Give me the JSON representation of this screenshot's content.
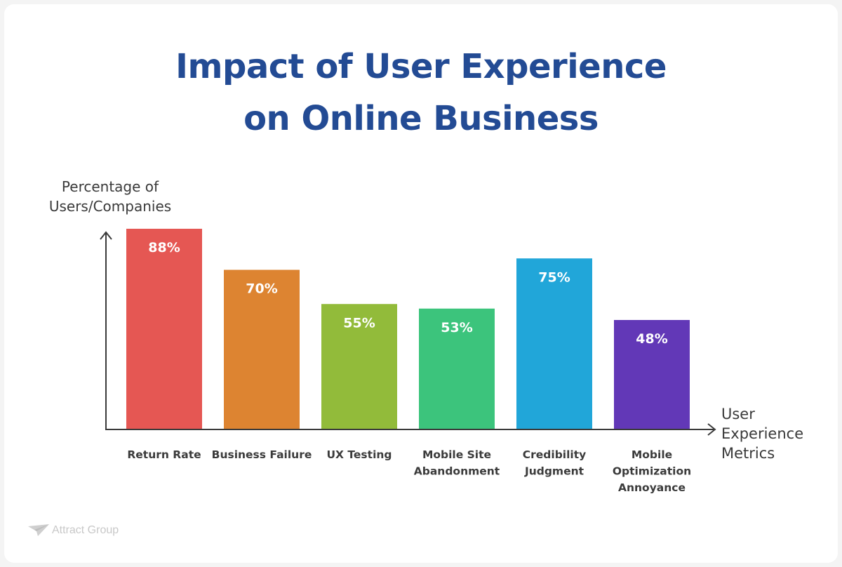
{
  "title": {
    "line1": "Impact of User Experience",
    "line2": "on Online Business"
  },
  "brand": {
    "name": "Attract Group",
    "icon": "paper-plane-icon"
  },
  "colors": {
    "title": "#234b94",
    "axis": "#3a3a3a",
    "bar_text": "#ffffff"
  },
  "chart_data": {
    "type": "bar",
    "title": "Impact of User Experience on Online Business",
    "ylabel": [
      "Percentage of",
      "Users/Companies"
    ],
    "xlabel": [
      "User",
      "Experience",
      "Metrics"
    ],
    "ylim": [
      0,
      100
    ],
    "grid": false,
    "legend": "none",
    "unit": "%",
    "categories": [
      [
        "Return Rate"
      ],
      [
        "Business Failure"
      ],
      [
        "UX Testing"
      ],
      [
        "Mobile Site",
        "Abandonment"
      ],
      [
        "Credibility",
        "Judgment"
      ],
      [
        "Mobile",
        "Optimization",
        "Annoyance"
      ]
    ],
    "values": [
      88,
      70,
      55,
      53,
      75,
      48
    ],
    "data_labels": [
      "88%",
      "70%",
      "55%",
      "53%",
      "75%",
      "48%"
    ],
    "bar_colors": [
      "#e55753",
      "#dd8431",
      "#92bb3a",
      "#3cc47c",
      "#21a6d9",
      "#6238b7"
    ]
  }
}
